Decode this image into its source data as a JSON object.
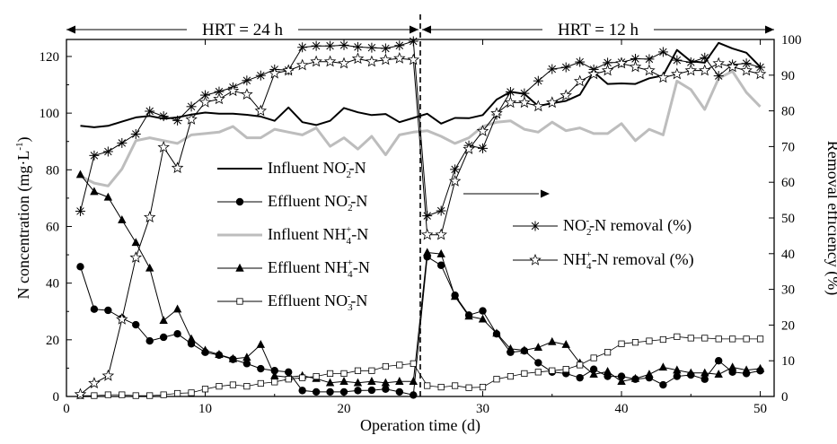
{
  "chart_data": {
    "type": "line",
    "x_axis": {
      "label": "Operation time (d)",
      "range": [
        0,
        51
      ],
      "ticks": [
        0,
        10,
        20,
        30,
        40,
        50
      ]
    },
    "y_left": {
      "label_pre": "N concentration (mg",
      "label_dot": "·",
      "label_unit": "L",
      "label_sup": "-1",
      "label_post": ")",
      "range": [
        0,
        126
      ],
      "ticks": [
        0,
        20,
        40,
        60,
        80,
        100,
        120
      ]
    },
    "y_right": {
      "label": "Removal efficiency (%)",
      "range": [
        0,
        100
      ],
      "ticks": [
        0,
        10,
        20,
        30,
        40,
        50,
        60,
        70,
        80,
        90,
        100
      ]
    },
    "phases": [
      {
        "label": "HRT = 24 h",
        "from": 0,
        "to": 25.5
      },
      {
        "label": "HRT = 12 h",
        "from": 25.5,
        "to": 51
      }
    ],
    "divider_x": 25.5,
    "series": [
      {
        "key": "inf_no2",
        "axis": "left",
        "style": "line",
        "color": "#000000",
        "legend": [
          "Influent NO",
          "2",
          "-",
          "-N"
        ],
        "x": [
          1,
          2,
          3,
          4,
          5,
          6,
          7,
          8,
          9,
          10,
          11,
          12,
          13,
          14,
          15,
          16,
          17,
          18,
          19,
          20,
          21,
          22,
          23,
          24,
          25,
          26,
          27,
          28,
          29,
          30,
          31,
          32,
          33,
          34,
          35,
          36,
          37,
          38,
          39,
          40,
          41,
          42,
          43,
          44,
          45,
          46,
          47,
          48,
          49,
          50
        ],
        "y": [
          95.5,
          95,
          95.5,
          97,
          98.5,
          99,
          98,
          98.5,
          99.5,
          100.2,
          99.8,
          99.8,
          99.4,
          98.8,
          97.3,
          102,
          96.8,
          95.8,
          97.3,
          101.8,
          100.3,
          99.3,
          99.7,
          96.8,
          98.3,
          99.8,
          96.3,
          98.3,
          98.2,
          99.3,
          104.8,
          107.5,
          106.8,
          102.5,
          103.5,
          104.3,
          106.5,
          114.5,
          110.3,
          110.5,
          110.3,
          112.3,
          113.3,
          122.3,
          118.3,
          117.8,
          124.8,
          122.8,
          121.3,
          116.3
        ]
      },
      {
        "key": "eff_no2",
        "axis": "left",
        "style": "line-marker",
        "marker": "circle-filled",
        "color": "#000000",
        "legend": [
          "Effluent NO",
          "2",
          "-",
          "-N"
        ],
        "x": [
          1,
          2,
          3,
          4,
          5,
          6,
          7,
          8,
          9,
          10,
          11,
          12,
          13,
          14,
          15,
          16,
          17,
          18,
          19,
          20,
          21,
          22,
          23,
          24,
          25,
          26,
          27,
          28,
          29,
          30,
          31,
          32,
          33,
          34,
          35,
          36,
          37,
          38,
          39,
          40,
          41,
          42,
          43,
          44,
          45,
          46,
          47,
          48,
          49,
          50
        ],
        "y": [
          45.8,
          30.8,
          30.4,
          27.6,
          25.3,
          19.6,
          20.9,
          22.1,
          18.6,
          15.6,
          14.6,
          13.1,
          11.6,
          9.8,
          9.1,
          8.6,
          2.1,
          1.6,
          1.6,
          1.6,
          2.1,
          2.2,
          2.6,
          1.6,
          0.5,
          49.3,
          46.3,
          35.7,
          28.7,
          30.2,
          22.1,
          15.6,
          16.1,
          11.9,
          8.6,
          8.1,
          6.6,
          9.6,
          7.1,
          7.1,
          6.1,
          6.6,
          4.1,
          7.1,
          7.6,
          6.1,
          12.6,
          8.6,
          8.1,
          9.1
        ]
      },
      {
        "key": "inf_nh4",
        "axis": "left",
        "style": "line",
        "color": "#bdbdbd",
        "width": 3,
        "legend": [
          "Influent NH",
          "4",
          "+",
          "-N"
        ],
        "x": [
          1,
          2,
          3,
          4,
          5,
          6,
          7,
          8,
          9,
          10,
          11,
          12,
          13,
          14,
          15,
          16,
          17,
          18,
          19,
          20,
          21,
          22,
          23,
          24,
          25,
          26,
          27,
          28,
          29,
          30,
          31,
          32,
          33,
          34,
          35,
          36,
          37,
          38,
          39,
          40,
          41,
          42,
          43,
          44,
          45,
          46,
          47,
          48,
          49,
          50
        ],
        "y": [
          77.8,
          75.3,
          74.3,
          80.3,
          90.3,
          91.3,
          90.3,
          89.3,
          92.3,
          92.8,
          93.3,
          95.3,
          91.3,
          91.3,
          94.3,
          93.3,
          92.3,
          94.8,
          88.3,
          91.3,
          87.3,
          91.8,
          85.3,
          92.3,
          93.3,
          93.8,
          91.8,
          89.3,
          91.3,
          95.3,
          96.8,
          97.3,
          94.3,
          93.3,
          96.8,
          93.8,
          94.8,
          92.8,
          92.8,
          96.3,
          90.3,
          94.3,
          92.3,
          111.3,
          108.3,
          101.3,
          112.3,
          114.8,
          107.3,
          102.3
        ]
      },
      {
        "key": "eff_nh4",
        "axis": "left",
        "style": "line-marker",
        "marker": "triangle-filled",
        "color": "#000000",
        "legend": [
          "Effluent NH",
          "4",
          "+",
          "-N"
        ],
        "x": [
          1,
          2,
          3,
          4,
          5,
          6,
          7,
          8,
          9,
          10,
          11,
          12,
          13,
          14,
          15,
          16,
          17,
          18,
          19,
          20,
          21,
          22,
          23,
          24,
          25,
          26,
          27,
          28,
          29,
          30,
          31,
          32,
          33,
          34,
          35,
          36,
          37,
          38,
          39,
          40,
          41,
          42,
          43,
          44,
          45,
          46,
          47,
          48,
          49,
          50
        ],
        "y": [
          78.3,
          72.3,
          70.3,
          62.3,
          54.3,
          45.3,
          26.8,
          30.8,
          20.3,
          16.3,
          14.8,
          13.3,
          13.8,
          18.3,
          7.3,
          6.8,
          7.3,
          6.3,
          4.8,
          5.3,
          4.8,
          5.3,
          4.8,
          5.3,
          5.3,
          50.8,
          50.3,
          35.3,
          28.3,
          27.3,
          22.3,
          16.8,
          16.3,
          17.3,
          19.3,
          18.3,
          11.8,
          7.8,
          8.8,
          5.3,
          6.3,
          7.8,
          10.3,
          9.3,
          8.3,
          8.3,
          7.8,
          10.3,
          9.3,
          9.8
        ]
      },
      {
        "key": "eff_no3",
        "axis": "left",
        "style": "line-marker",
        "marker": "square-open",
        "color": "#000000",
        "width": 0.8,
        "legend": [
          "Effluent NO",
          "3",
          "-",
          "-N"
        ],
        "x": [
          1,
          2,
          3,
          4,
          5,
          6,
          7,
          8,
          9,
          10,
          11,
          12,
          13,
          14,
          15,
          16,
          17,
          18,
          19,
          20,
          21,
          22,
          23,
          24,
          25,
          26,
          27,
          28,
          29,
          30,
          31,
          32,
          33,
          34,
          35,
          36,
          37,
          38,
          39,
          40,
          41,
          42,
          43,
          44,
          45,
          46,
          47,
          48,
          49,
          50
        ],
        "y": [
          0.3,
          0.3,
          0.6,
          0.6,
          0.3,
          0.3,
          0.6,
          1.1,
          1.3,
          2.6,
          3.6,
          4.1,
          3.6,
          4.6,
          5.1,
          6.1,
          6.6,
          7.1,
          8.1,
          8.1,
          9.1,
          9.1,
          10.6,
          11.1,
          11.6,
          3.8,
          3.3,
          3.8,
          3.1,
          3.3,
          6.1,
          7.1,
          8.1,
          8.6,
          9.1,
          9.6,
          11.1,
          13.6,
          15.6,
          18.6,
          19.1,
          19.6,
          20.1,
          21.1,
          20.6,
          20.6,
          20.3,
          20.3,
          20.3,
          20.3
        ]
      },
      {
        "key": "rem_no2",
        "axis": "right",
        "style": "line-marker",
        "marker": "asterisk",
        "color": "#000000",
        "legend": [
          "NO",
          "2",
          "-",
          "-N removal (%)"
        ],
        "x": [
          1,
          2,
          3,
          4,
          5,
          6,
          7,
          8,
          9,
          10,
          11,
          12,
          13,
          14,
          15,
          16,
          17,
          18,
          19,
          20,
          21,
          22,
          23,
          24,
          25,
          26,
          27,
          28,
          29,
          30,
          31,
          32,
          33,
          34,
          35,
          36,
          37,
          38,
          39,
          40,
          41,
          42,
          43,
          44,
          45,
          46,
          47,
          48,
          49,
          50
        ],
        "y": [
          51.9,
          67.5,
          68.6,
          71.0,
          73.5,
          79.9,
          78.5,
          77.3,
          81.2,
          84.4,
          85.4,
          86.6,
          88.5,
          89.9,
          91.6,
          91.4,
          97.8,
          98.2,
          98.2,
          98.4,
          97.9,
          97.7,
          97.5,
          98.3,
          99.5,
          50.6,
          52.0,
          63.6,
          70.3,
          69.5,
          78.9,
          85.3,
          84.9,
          88.4,
          91.7,
          92.2,
          93.7,
          91.6,
          93.5,
          93.6,
          94.6,
          94.5,
          96.5,
          94.2,
          93.6,
          94.9,
          89.8,
          93.0,
          93.3,
          92.2
        ]
      },
      {
        "key": "rem_nh4",
        "axis": "right",
        "style": "line-marker",
        "marker": "star-open",
        "color": "#000000",
        "legend": [
          "NH",
          "4",
          "+",
          "-N removal (%)"
        ],
        "x": [
          1,
          2,
          3,
          4,
          5,
          6,
          7,
          8,
          9,
          10,
          11,
          12,
          13,
          14,
          15,
          16,
          17,
          18,
          19,
          20,
          21,
          22,
          23,
          24,
          25,
          26,
          27,
          28,
          29,
          30,
          31,
          32,
          33,
          34,
          35,
          36,
          37,
          38,
          39,
          40,
          41,
          42,
          43,
          44,
          45,
          46,
          47,
          48,
          49,
          50
        ],
        "y": [
          0.6,
          3.7,
          5.8,
          21.6,
          38.9,
          50.2,
          69.8,
          64.0,
          77.6,
          82.4,
          83.3,
          85.6,
          84.6,
          80.0,
          90.5,
          91.3,
          92.8,
          93.8,
          93.8,
          93.3,
          94.6,
          93.8,
          94.3,
          94.7,
          94.3,
          45.3,
          45.3,
          60.3,
          69.3,
          74.3,
          79.3,
          82.3,
          82.3,
          81.3,
          82.3,
          84.3,
          88.3,
          90.3,
          91.3,
          93.3,
          92.3,
          91.3,
          89.3,
          90.3,
          91.3,
          91.3,
          93.3,
          92.3,
          91.3,
          90.3
        ]
      }
    ]
  }
}
